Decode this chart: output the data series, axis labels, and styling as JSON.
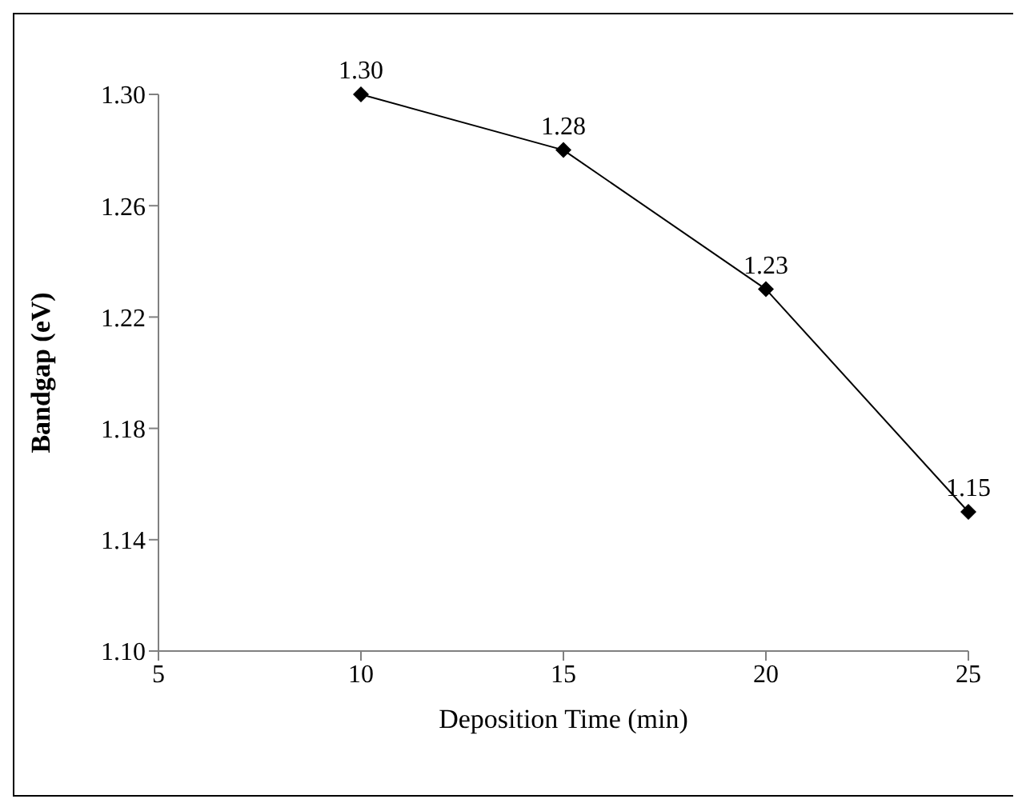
{
  "chart_data": {
    "type": "line",
    "xlabel": "Deposition Time (min)",
    "ylabel": "Bandgap (eV)",
    "x": [
      10,
      15,
      20,
      25
    ],
    "series": [
      {
        "color": "#000000",
        "values": [
          1.3,
          1.28,
          1.23,
          1.15
        ],
        "value_labels": [
          "1.30",
          "1.28",
          "1.23",
          "1.15"
        ]
      }
    ],
    "xlim": [
      5,
      25
    ],
    "xticks": [
      5,
      10,
      15,
      20,
      25
    ],
    "ylim": [
      1.1,
      1.3
    ],
    "yticks": [
      {
        "value": 1.1,
        "label": "1.10"
      },
      1.14,
      1.18,
      1.22,
      1.26,
      {
        "value": 1.3,
        "label": "1.30"
      }
    ],
    "marker": "diamond",
    "line_style": "solid",
    "grid": false
  }
}
